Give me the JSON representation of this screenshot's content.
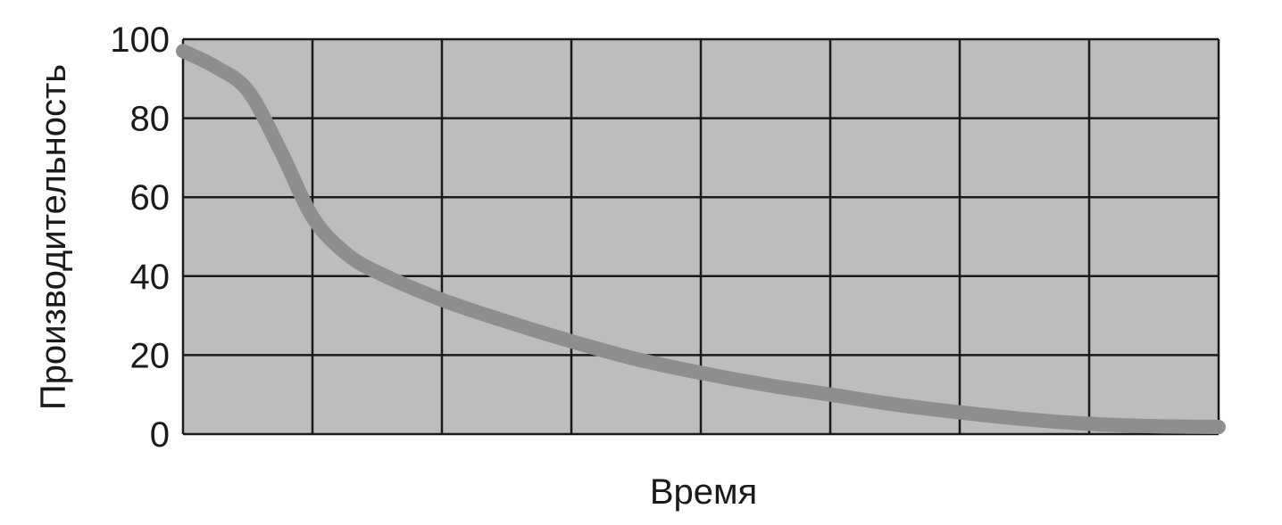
{
  "chart_data": {
    "type": "line",
    "title": "",
    "xlabel": "Время",
    "ylabel": "Производительность",
    "ylim": [
      0,
      100
    ],
    "yticks": [
      "0",
      "20",
      "40",
      "60",
      "80",
      "100"
    ],
    "xlim": [
      0,
      8
    ],
    "x_gridlines": 8,
    "grid": true,
    "plot_background": "#bdbdbd",
    "grid_color": "#1a1a1a",
    "series": [
      {
        "color": "#8f8e8e",
        "x": [
          0,
          0.25,
          0.5,
          0.75,
          1.0,
          1.25,
          1.5,
          2.0,
          2.5,
          3.0,
          3.5,
          4.0,
          4.5,
          5.0,
          5.5,
          6.0,
          6.5,
          7.0,
          7.5,
          8.0
        ],
        "y": [
          97,
          93,
          87,
          72,
          55,
          46,
          41,
          34,
          28.5,
          23.5,
          19,
          15.5,
          12.5,
          10,
          7.5,
          5.5,
          3.8,
          2.6,
          2,
          1.8
        ]
      }
    ]
  }
}
